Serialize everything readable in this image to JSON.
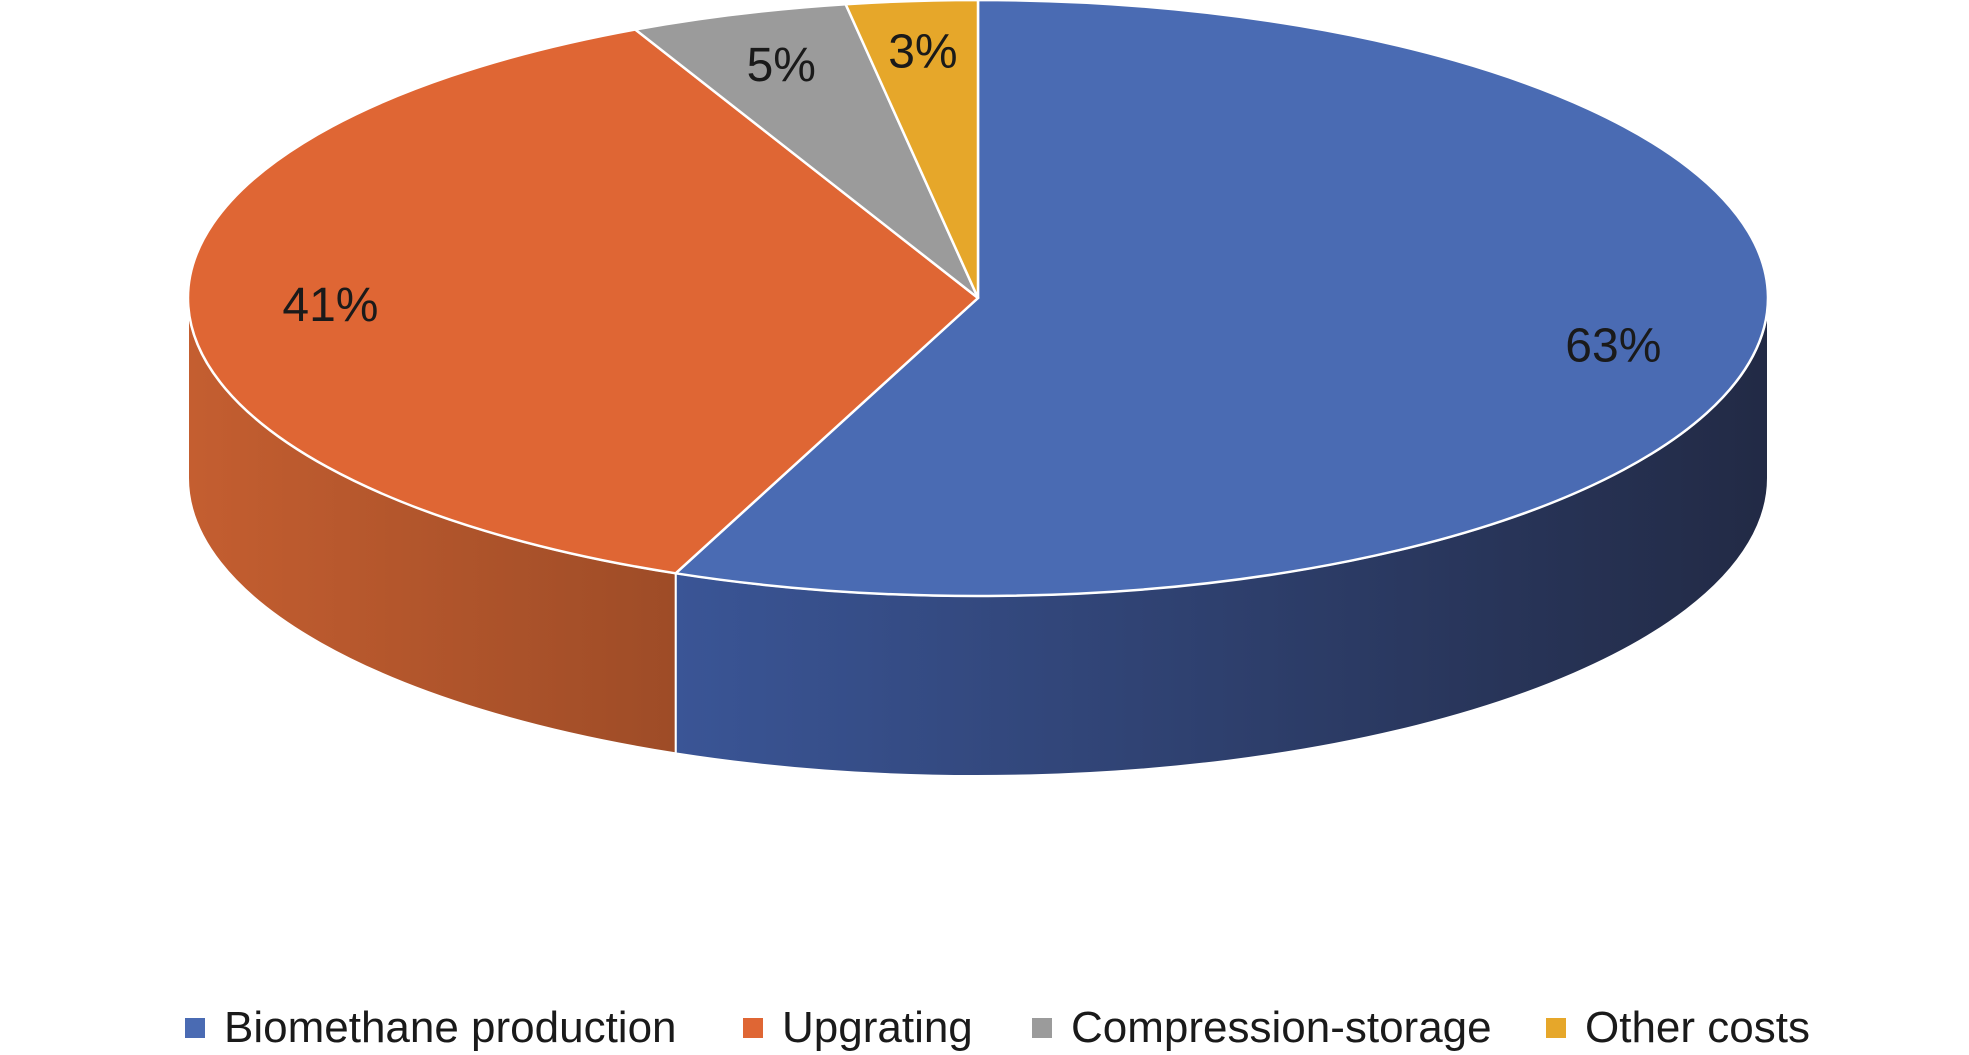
{
  "chart_data": {
    "type": "pie",
    "three_d": true,
    "title": "",
    "start_angle": "12 o'clock",
    "direction": "clockwise",
    "slices": [
      {
        "name": "Biomethane production",
        "label": "63%",
        "value": 63,
        "color": "#4a6bb3",
        "side_color": "#2c3d6e"
      },
      {
        "name": "Upgrating",
        "label": "41%",
        "value": 41,
        "color": "#df6634",
        "side_color": "#a8502a"
      },
      {
        "name": "Compression-storage",
        "label": "5%",
        "value": 5,
        "color": "#9b9b9b",
        "side_color": "#6f6f6f"
      },
      {
        "name": "Other costs",
        "label": "3%",
        "value": 3,
        "color": "#e6a72a",
        "side_color": "#a87a1f"
      }
    ],
    "legend": {
      "position": "bottom",
      "entries": [
        "Biomethane production",
        "Upgrating",
        "Compression-storage",
        "Other costs"
      ]
    }
  }
}
